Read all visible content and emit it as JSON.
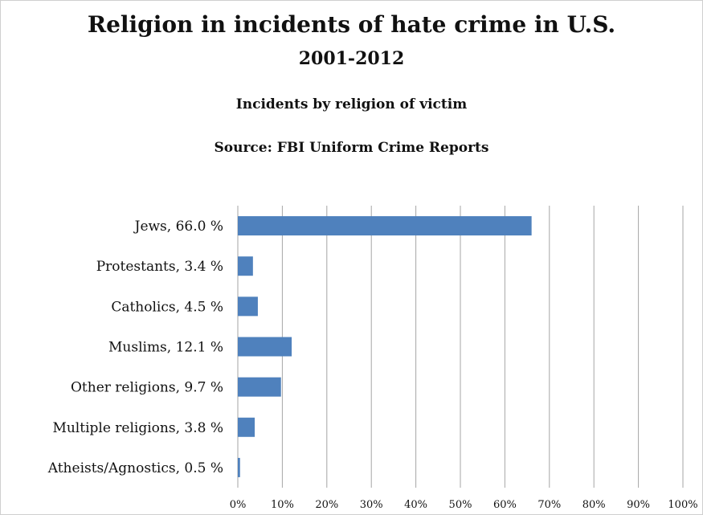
{
  "header": {
    "title_line1": "Religion in incidents of hate crime in U.S.",
    "title_line2": "2001-2012",
    "subtitle": "Incidents by religion of victim",
    "source": "Source: FBI Uniform Crime Reports"
  },
  "colors": {
    "bar": "#4f81bd",
    "grid": "#a6a6a6",
    "text": "#111111"
  },
  "chart_data": {
    "type": "bar",
    "orientation": "horizontal",
    "title": "Religion in incidents of hate crime in U.S. 2001-2012",
    "subtitle": "Incidents by religion of victim",
    "categories": [
      "Jews, 66.0 %",
      "Protestants, 3.4 %",
      "Catholics, 4.5 %",
      "Muslims, 12.1 %",
      "Other religions, 9.7 %",
      "Multiple religions, 3.8 %",
      "Atheists/Agnostics, 0.5 %"
    ],
    "values": [
      66.0,
      3.4,
      4.5,
      12.1,
      9.7,
      3.8,
      0.5
    ],
    "xlim": [
      0,
      100
    ],
    "x_ticks": [
      "0%",
      "10%",
      "20%",
      "30%",
      "40%",
      "50%",
      "60%",
      "70%",
      "80%",
      "90%",
      "100%"
    ],
    "grid": true,
    "legend": "none"
  }
}
